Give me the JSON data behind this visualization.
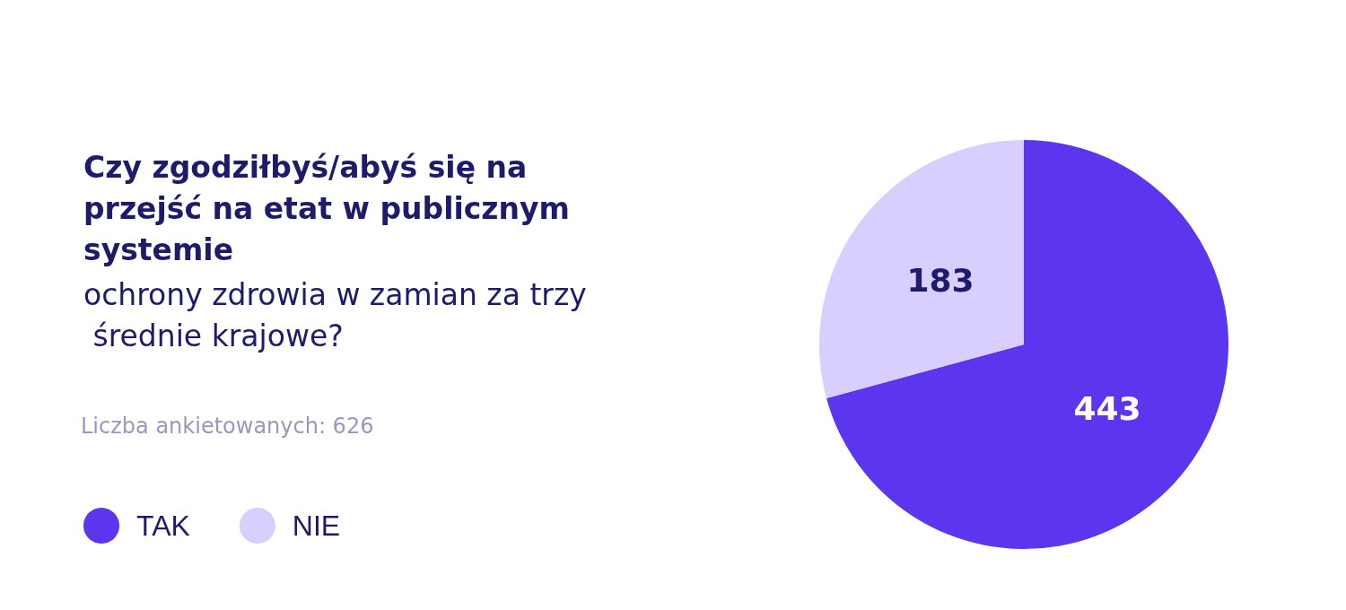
{
  "chart_data": {
    "type": "pie",
    "title": "Czy zgodziłbyś/abyś się na przejść na etat w publicznym systemie",
    "subtitle": "ochrony zdrowia w zamian za trzy średnie krajowe?",
    "annotations": [
      "Liczba ankietowanych: 626"
    ],
    "categories": [
      "TAK",
      "NIE"
    ],
    "values": [
      443,
      183
    ],
    "colors": [
      "#5c35ee",
      "#d9cfff"
    ],
    "data_labels": true,
    "legend": "bottom left"
  }
}
